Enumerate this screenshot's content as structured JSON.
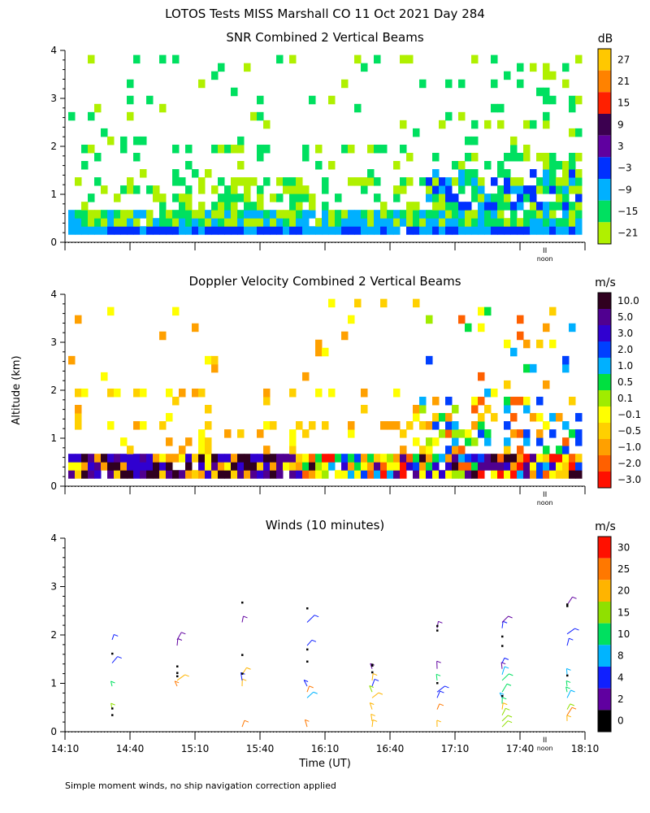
{
  "page": {
    "title": "LOTOS Tests MISS Marshall CO  11 Oct 2021 Day 284",
    "footnote": "Simple moment winds, no ship navigation correction applied",
    "y_axis_label": "Altitude (km)",
    "x_axis_label": "Time (UT)",
    "noon_label": "noon",
    "noon_mark": "II"
  },
  "chart_data": [
    {
      "id": "snr",
      "type": "heatmap",
      "title": "SNR Combined 2 Vertical Beams",
      "ylabel": "Altitude (km)",
      "ylim": [
        0,
        4
      ],
      "yticks": [
        "0",
        "1",
        "2",
        "3",
        "4"
      ],
      "xlim": [
        "14:10",
        "18:10"
      ],
      "colorbar": {
        "unit": "dB",
        "labels": [
          "27",
          "21",
          "15",
          "9",
          "3",
          "−3",
          "−9",
          "−15",
          "−21"
        ],
        "colors": [
          "#ffc800",
          "#ff8200",
          "#ff2000",
          "#3c0050",
          "#6000a0",
          "#0030ff",
          "#00b0ff",
          "#00e060",
          "#b0f000"
        ]
      }
    },
    {
      "id": "doppler",
      "type": "heatmap",
      "title": "Doppler Velocity Combined 2 Vertical Beams",
      "ylabel": "Altitude (km)",
      "ylim": [
        0,
        4
      ],
      "yticks": [
        "0",
        "1",
        "2",
        "3",
        "4"
      ],
      "xlim": [
        "14:10",
        "18:10"
      ],
      "colorbar": {
        "unit": "m/s",
        "labels": [
          "10.0",
          "5.0",
          "3.0",
          "2.0",
          "1.0",
          "0.5",
          "0.1",
          "−0.1",
          "−0.5",
          "−1.0",
          "−2.0",
          "−3.0"
        ],
        "colors": [
          "#300020",
          "#500090",
          "#3000d0",
          "#0040ff",
          "#00b0ff",
          "#00e040",
          "#a0ec00",
          "#ffff00",
          "#ffd000",
          "#ffa000",
          "#ff6000",
          "#ff1000"
        ]
      }
    },
    {
      "id": "winds",
      "type": "scatter",
      "title": "Winds (10 minutes)",
      "xlabel": "Time (UT)",
      "ylabel": "Altitude (km)",
      "ylim": [
        0,
        4
      ],
      "yticks": [
        "0",
        "1",
        "2",
        "3",
        "4"
      ],
      "xlim": [
        "14:10",
        "18:10"
      ],
      "xticks": [
        "14:10",
        "14:40",
        "15:10",
        "15:40",
        "16:10",
        "16:40",
        "17:10",
        "17:40",
        "18:10"
      ],
      "colorbar": {
        "unit": "m/s",
        "labels": [
          "30",
          "25",
          "20",
          "15",
          "10",
          "8",
          "4",
          "2",
          "0"
        ],
        "colors": [
          "#ff1000",
          "#ff7800",
          "#ffb400",
          "#90e000",
          "#00e060",
          "#00b4ff",
          "#1020ff",
          "#6000a0",
          "#000000"
        ]
      }
    }
  ]
}
